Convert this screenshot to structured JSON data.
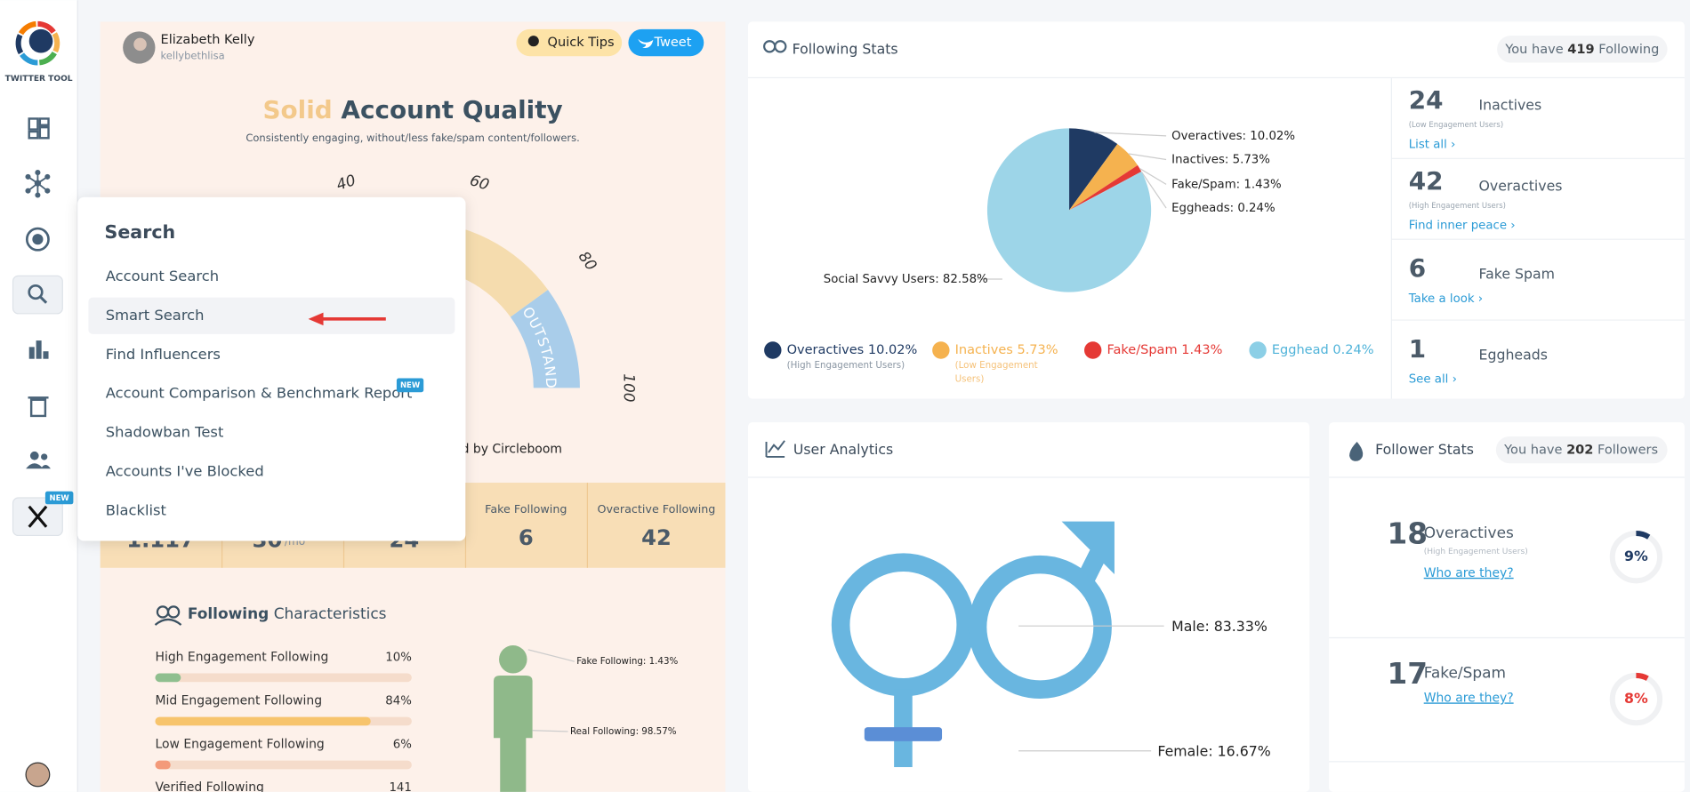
{
  "sidebar": {
    "brand": "TWITTER TOOL",
    "new_badge": "NEW"
  },
  "profile": {
    "name": "Elizabeth Kelly",
    "handle": "kellybethlisa"
  },
  "buttons": {
    "quick_tips": "Quick Tips",
    "tweet": "Tweet"
  },
  "quality": {
    "word": "Solid",
    "title": "Account Quality",
    "subtitle": "Consistently engaging, without/less fake/spam content/followers.",
    "gauge_ticks": [
      "40",
      "60",
      "80",
      "100"
    ],
    "band": "OUTSTANDING",
    "credit": "d by Circleboom"
  },
  "stats_row": {
    "partial": [
      "1.117",
      "30",
      "/mo",
      "24"
    ],
    "cells": [
      {
        "label": "Fake Following",
        "value": "6"
      },
      {
        "label": "Overactive Following",
        "value": "42"
      }
    ]
  },
  "characteristics": {
    "title_bold": "Following",
    "title_rest": "Characteristics",
    "rows": [
      {
        "label": "High Engagement Following",
        "value": 10,
        "value_label": "10%"
      },
      {
        "label": "Mid Engagement Following",
        "value": 84,
        "value_label": "84%"
      },
      {
        "label": "Low Engagement Following",
        "value": 6,
        "value_label": "6%"
      }
    ],
    "verified": {
      "label": "Verified Following",
      "value": "141"
    },
    "figure_labels": [
      "Fake Following: 1.43%",
      "Real Following: 98.57%"
    ]
  },
  "search_menu": {
    "title": "Search",
    "items": [
      "Account Search",
      "Smart Search",
      "Find Influencers",
      "Account Comparison & Benchmark Report",
      "Shadowban Test",
      "Accounts I've Blocked",
      "Blacklist"
    ],
    "new_badge": "NEW"
  },
  "following_stats": {
    "title": "Following Stats",
    "count_prefix": "You have",
    "count": "419",
    "count_suffix": "Following",
    "pie": [
      {
        "label": "Overactives: 10.02%",
        "value": 10.02,
        "color": "#1f3a63"
      },
      {
        "label": "Inactives: 5.73%",
        "value": 5.73,
        "color": "#f5b24f"
      },
      {
        "label": "Fake/Spam: 1.43%",
        "value": 1.43,
        "color": "#e53935"
      },
      {
        "label": "Eggheads: 0.24%",
        "value": 0.24,
        "color": "#9ad0e6"
      },
      {
        "label": "Social Savvy Users: 82.58%",
        "value": 82.58,
        "color": "#9dd5e8"
      }
    ],
    "legend": [
      {
        "name": "Overactives 10.02%",
        "note": [
          "(High Engagement Users)"
        ]
      },
      {
        "name": "Inactives 5.73%",
        "note": [
          "(Low Engagement",
          "Users)"
        ]
      },
      {
        "name": "Fake/Spam 1.43%",
        "note": []
      },
      {
        "name": "Egghead 0.24%",
        "note": []
      }
    ],
    "cards": [
      {
        "number": "24",
        "label": "Inactives",
        "note": "(Low Engagement Users)",
        "link": "List all ›"
      },
      {
        "number": "42",
        "label": "Overactives",
        "note": "(High Engagement Users)",
        "link": "Find inner peace ›"
      },
      {
        "number": "6",
        "label": "Fake Spam",
        "link": "Take a look ›"
      },
      {
        "number": "1",
        "label": "Eggheads",
        "link": "See all ›"
      }
    ]
  },
  "user_analytics": {
    "title": "User Analytics",
    "male": "Male: 83.33%",
    "female": "Female: 16.67%"
  },
  "follower_stats": {
    "title": "Follower Stats",
    "count_prefix": "You have",
    "count": "202",
    "count_suffix": "Followers",
    "cards": [
      {
        "number": "18",
        "label": "Overactives",
        "note": "(High Engagement Users)",
        "link": "Who are they?",
        "percent": 9,
        "percent_label": "9%",
        "color": "#1f3a63"
      },
      {
        "number": "17",
        "label": "Fake/Spam",
        "link": "Who are they?",
        "percent": 8,
        "percent_label": "8%",
        "color": "#e53935"
      }
    ]
  }
}
